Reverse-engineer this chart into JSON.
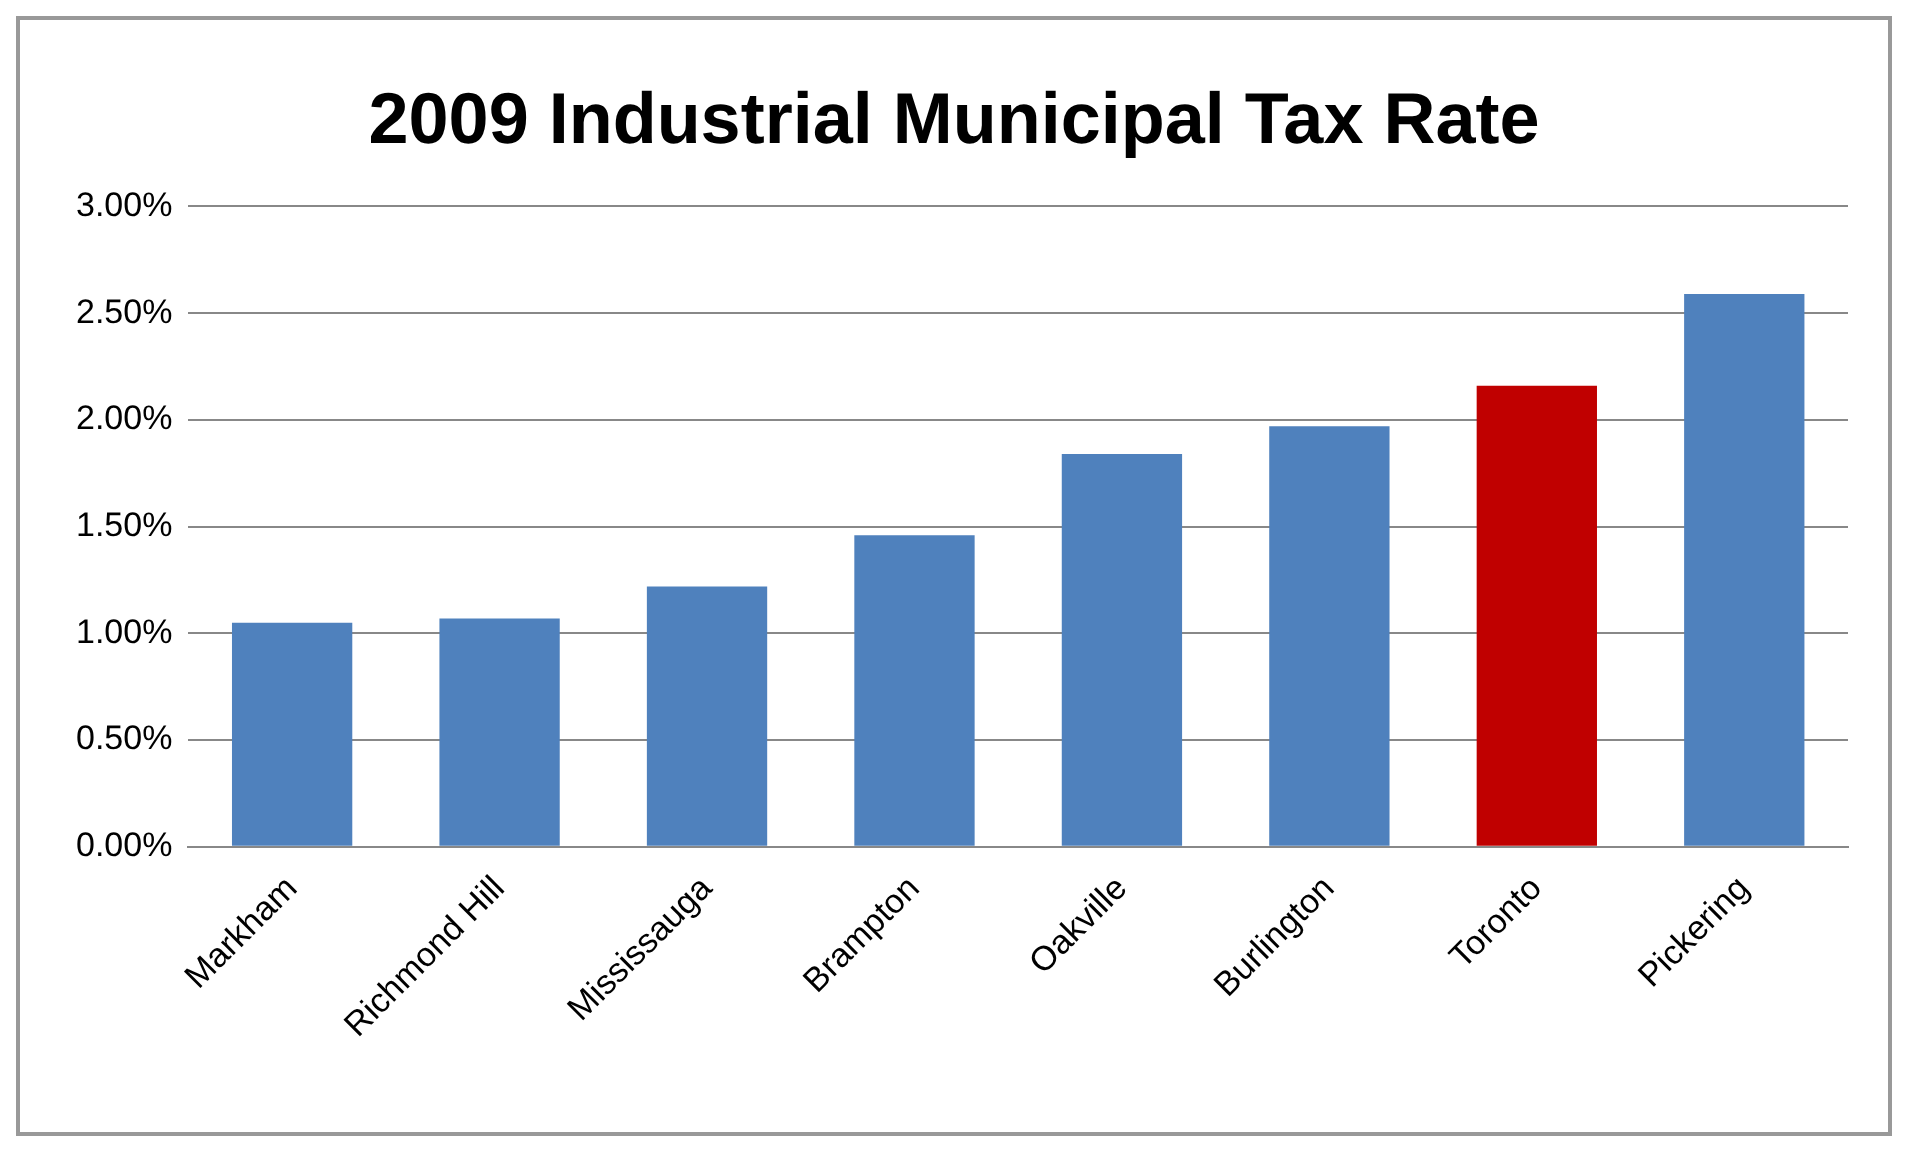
{
  "chart_data": {
    "type": "bar",
    "title": "2009 Industrial Municipal Tax Rate",
    "categories": [
      "Markham",
      "Richmond Hill",
      "Mississauga",
      "Brampton",
      "Oakville",
      "Burlington",
      "Toronto",
      "Pickering"
    ],
    "values": [
      1.05,
      1.07,
      1.22,
      1.46,
      1.84,
      1.97,
      2.16,
      2.59
    ],
    "colors": [
      "#4f81bd",
      "#4f81bd",
      "#4f81bd",
      "#4f81bd",
      "#4f81bd",
      "#4f81bd",
      "#c00000",
      "#4f81bd"
    ],
    "ylim": [
      0,
      3
    ],
    "yticks": [
      {
        "value": 0,
        "label": "0.00%"
      },
      {
        "value": 0.5,
        "label": "0.50%"
      },
      {
        "value": 1,
        "label": "1.00%"
      },
      {
        "value": 1.5,
        "label": "1.50%"
      },
      {
        "value": 2,
        "label": "2.00%"
      },
      {
        "value": 2.5,
        "label": "2.50%"
      },
      {
        "value": 3,
        "label": "3.00%"
      }
    ],
    "grid": "y",
    "legend": false
  }
}
